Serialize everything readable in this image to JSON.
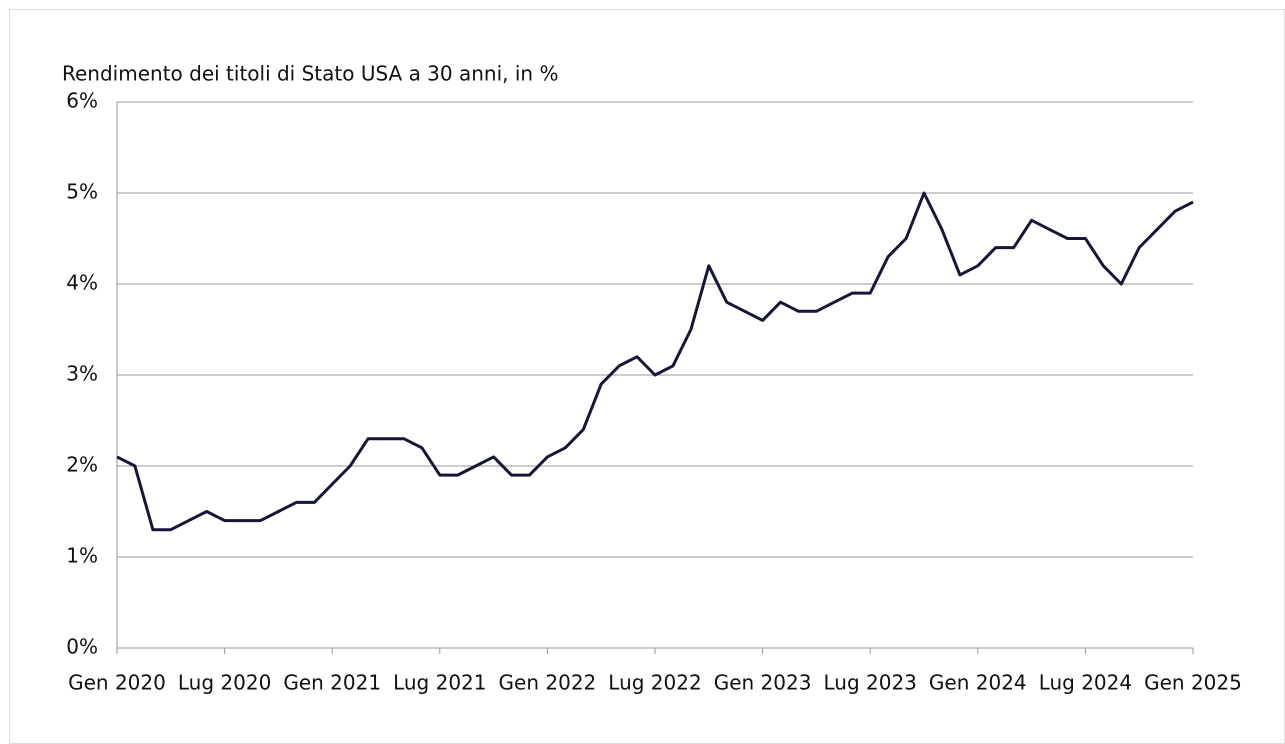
{
  "chart_data": {
    "type": "line",
    "title": "Rendimento dei titoli di Stato USA a 30 anni, in %",
    "categories": [
      "Gen 2020",
      null,
      null,
      null,
      null,
      null,
      "Lug 2020",
      null,
      null,
      null,
      null,
      null,
      "Gen 2021",
      null,
      null,
      null,
      null,
      null,
      "Lug 2021",
      null,
      null,
      null,
      null,
      null,
      "Gen 2022",
      null,
      null,
      null,
      null,
      null,
      "Lug 2022",
      null,
      null,
      null,
      null,
      null,
      "Gen 2023",
      null,
      null,
      null,
      null,
      null,
      "Lug 2023",
      null,
      null,
      null,
      null,
      null,
      "Gen 2024",
      null,
      null,
      null,
      null,
      null,
      "Lug 2024",
      null,
      null,
      null,
      null,
      null,
      "Gen 2025"
    ],
    "values": [
      2.1,
      2.0,
      1.3,
      1.3,
      1.4,
      1.5,
      1.4,
      1.4,
      1.4,
      1.5,
      1.6,
      1.6,
      1.8,
      2.0,
      2.3,
      2.3,
      2.3,
      2.2,
      1.9,
      1.9,
      2.0,
      2.1,
      1.9,
      1.9,
      2.1,
      2.2,
      2.4,
      2.9,
      3.1,
      3.2,
      3.0,
      3.1,
      3.5,
      4.2,
      3.8,
      3.7,
      3.6,
      3.8,
      3.7,
      3.7,
      3.8,
      3.9,
      3.9,
      4.3,
      4.5,
      5.0,
      4.6,
      4.1,
      4.2,
      4.4,
      4.4,
      4.7,
      4.6,
      4.5,
      4.5,
      4.2,
      4.0,
      4.4,
      4.6,
      4.8,
      4.9
    ],
    "color": "#16163a",
    "ylim": [
      0,
      6
    ],
    "yticks": [
      {
        "value": 0,
        "label": "0%"
      },
      {
        "value": 1,
        "label": "1%"
      },
      {
        "value": 2,
        "label": "2%"
      },
      {
        "value": 3,
        "label": "3%"
      },
      {
        "value": 4,
        "label": "4%"
      },
      {
        "value": 5,
        "label": "5%"
      },
      {
        "value": 6,
        "label": "6%"
      }
    ],
    "grid": true
  }
}
